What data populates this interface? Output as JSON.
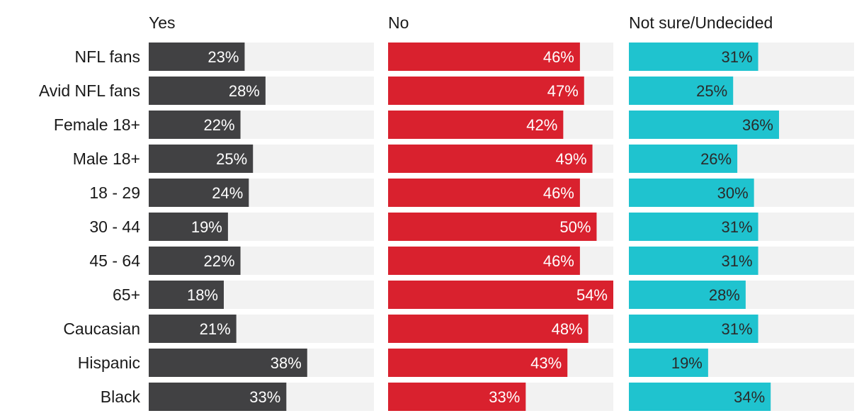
{
  "chart_data": {
    "type": "bar",
    "orientation": "horizontal",
    "categories": [
      "NFL fans",
      "Avid NFL fans",
      "Female 18+",
      "Male 18+",
      "18 - 29",
      "30 - 44",
      "45 - 64",
      "65+",
      "Caucasian",
      "Hispanic",
      "Black"
    ],
    "series": [
      {
        "name": "Yes",
        "color": "#414143",
        "label_color": "#ffffff",
        "values": [
          23,
          28,
          22,
          25,
          24,
          19,
          22,
          18,
          21,
          38,
          33
        ]
      },
      {
        "name": "No",
        "color": "#d9212e",
        "label_color": "#ffffff",
        "values": [
          46,
          47,
          42,
          49,
          46,
          50,
          46,
          54,
          48,
          43,
          33
        ]
      },
      {
        "name": "Not sure/Undecided",
        "color": "#1fc3cf",
        "label_color": "#2a2a2a",
        "values": [
          31,
          25,
          36,
          26,
          30,
          31,
          31,
          28,
          31,
          19,
          34
        ]
      }
    ],
    "value_suffix": "%",
    "xlim": [
      0,
      54
    ],
    "track_color": "#f2f2f2"
  }
}
